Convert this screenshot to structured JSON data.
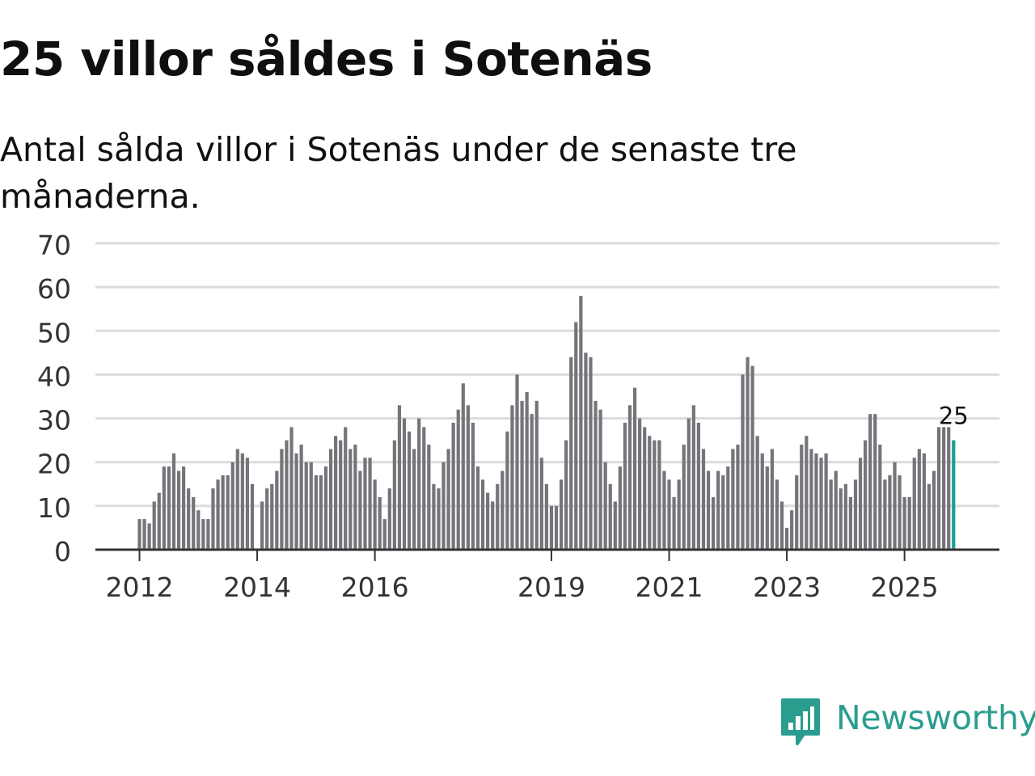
{
  "title": "25 villor såldes i Sotenäs",
  "subtitle": "Antal sålda villor i Sotenäs under de senaste tre månaderna.",
  "logo": {
    "text": "Newsworthy",
    "icon": "newsworthy-logo-icon"
  },
  "colors": {
    "bar": "#75747a",
    "highlight": "#1a9e94",
    "grid": "#dcdcdc",
    "axis": "#333333",
    "brand": "#2a9d8f"
  },
  "chart_data": {
    "type": "bar",
    "title": "25 villor såldes i Sotenäs",
    "xlabel": "",
    "ylabel": "",
    "ylim": [
      0,
      70
    ],
    "yticks": [
      "0",
      "10",
      "20",
      "30",
      "40",
      "50",
      "60",
      "70"
    ],
    "grid": true,
    "x_tick_labels": [
      {
        "label": "2012",
        "index": 0
      },
      {
        "label": "2014",
        "index": 24
      },
      {
        "label": "2016",
        "index": 48
      },
      {
        "label": "2019",
        "index": 84
      },
      {
        "label": "2021",
        "index": 108
      },
      {
        "label": "2023",
        "index": 132
      },
      {
        "label": "2025",
        "index": 156
      }
    ],
    "values": [
      7,
      7,
      6,
      11,
      13,
      19,
      19,
      22,
      18,
      19,
      14,
      12,
      9,
      7,
      7,
      14,
      16,
      17,
      17,
      20,
      23,
      22,
      21,
      15,
      0,
      11,
      14,
      15,
      18,
      23,
      25,
      28,
      22,
      24,
      20,
      20,
      17,
      17,
      19,
      23,
      26,
      25,
      28,
      23,
      24,
      18,
      21,
      21,
      16,
      12,
      7,
      14,
      25,
      33,
      30,
      27,
      23,
      30,
      28,
      24,
      15,
      14,
      20,
      23,
      29,
      32,
      38,
      33,
      29,
      19,
      16,
      13,
      11,
      15,
      18,
      27,
      33,
      40,
      34,
      36,
      31,
      34,
      21,
      15,
      10,
      10,
      16,
      25,
      44,
      52,
      58,
      45,
      44,
      34,
      32,
      20,
      15,
      11,
      19,
      29,
      33,
      37,
      30,
      28,
      26,
      25,
      25,
      18,
      16,
      12,
      16,
      24,
      30,
      33,
      29,
      23,
      18,
      12,
      18,
      17,
      19,
      23,
      24,
      40,
      44,
      42,
      26,
      22,
      19,
      23,
      16,
      11,
      5,
      9,
      17,
      24,
      26,
      23,
      22,
      21,
      22,
      16,
      18,
      14,
      15,
      12,
      16,
      21,
      25,
      31,
      31,
      24,
      16,
      17,
      20,
      17,
      12,
      12,
      21,
      23,
      22,
      15,
      18,
      28,
      28,
      28,
      25
    ],
    "last_value_label": "25"
  }
}
